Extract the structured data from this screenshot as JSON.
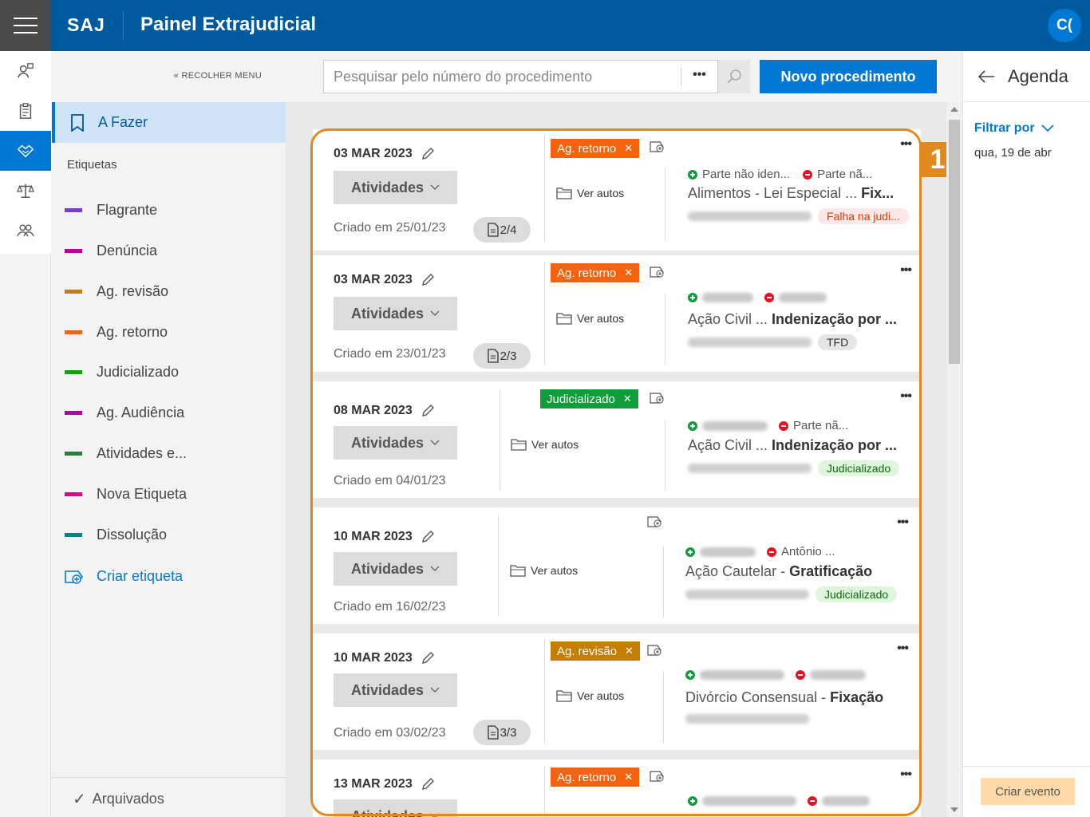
{
  "header": {
    "brand": "SAJ",
    "title": "Painel Extrajudicial",
    "avatar": "C("
  },
  "sidebar": {
    "collapse_label": "« RECOLHER MENU",
    "active_item": "A Fazer",
    "tags_title": "Etiquetas",
    "tags": [
      {
        "label": "Flagrante",
        "color": "#7a3bd6"
      },
      {
        "label": "Denúncia",
        "color": "#b4009e"
      },
      {
        "label": "Ag. revisão",
        "color": "#c47f00"
      },
      {
        "label": "Ag. retorno",
        "color": "#f7630c"
      },
      {
        "label": "Judicializado",
        "color": "#13a10e"
      },
      {
        "label": "Ag. Audiência",
        "color": "#b4009e"
      },
      {
        "label": "Atividades e...",
        "color": "#2d7d3a"
      },
      {
        "label": "Nova Etiqueta",
        "color": "#e3008c"
      },
      {
        "label": "Dissolução",
        "color": "#038387"
      }
    ],
    "create_tag": "Criar etiqueta",
    "archived": "Arquivados"
  },
  "search": {
    "placeholder": "Pesquisar pelo número do procedimento",
    "more": "•••"
  },
  "new_button": "Novo procedimento",
  "cards": [
    {
      "date": "03 MAR 2023",
      "activities": "Atividades",
      "created": "Criado em 25/01/23",
      "pages": "2/4",
      "chip": "Ag. retorno",
      "chip_type": "retorno",
      "ver_autos": "Ver autos",
      "party1": "Parte não iden...",
      "party2": "Parte nã...",
      "title_a": "Alimentos - Lei Especial ... ",
      "title_b": "Fix...",
      "pill": "Falha na judi...",
      "pill_type": "fail"
    },
    {
      "date": "03 MAR 2023",
      "activities": "Atividades",
      "created": "Criado em 23/01/23",
      "pages": "2/3",
      "chip": "Ag. retorno",
      "chip_type": "retorno",
      "ver_autos": "Ver autos",
      "party1": "",
      "party2": "",
      "title_a": "Ação Civil ... ",
      "title_b": "Indenização por ...",
      "pill": "TFD",
      "pill_type": "tfd"
    },
    {
      "date": "08 MAR 2023",
      "activities": "Atividades",
      "created": "Criado em 04/01/23",
      "pages": "",
      "chip": "Judicializado",
      "chip_type": "judic",
      "ver_autos": "Ver autos",
      "party1": "",
      "party2": "Parte nã...",
      "title_a": "Ação Civil ... ",
      "title_b": "Indenização por ...",
      "pill": "Judicializado",
      "pill_type": "jud"
    },
    {
      "date": "10 MAR 2023",
      "activities": "Atividades",
      "created": "Criado em 16/02/23",
      "pages": "",
      "chip": "",
      "chip_type": "",
      "ver_autos": "Ver autos",
      "party1": "",
      "party2": "Antônio ...",
      "title_a": "Ação Cautelar - ",
      "title_b": "Gratificação",
      "pill": "Judicializado",
      "pill_type": "jud"
    },
    {
      "date": "10 MAR 2023",
      "activities": "Atividades",
      "created": "Criado em 03/02/23",
      "pages": "3/3",
      "chip": "Ag. revisão",
      "chip_type": "revisao",
      "ver_autos": "Ver autos",
      "party1": "",
      "party2": "",
      "title_a": "Divórcio Consensual - ",
      "title_b": "Fixação",
      "pill": "",
      "pill_type": ""
    },
    {
      "date": "13 MAR 2023",
      "activities": "Atividades",
      "created": "",
      "pages": "",
      "chip": "Ag. retorno",
      "chip_type": "retorno",
      "ver_autos": "",
      "party1": "",
      "party2": "",
      "title_a": "",
      "title_b": "",
      "pill": "",
      "pill_type": ""
    }
  ],
  "annotation_badge": "1",
  "agenda": {
    "title": "Agenda",
    "filter": "Filtrar por",
    "date": "qua, 19 de abr",
    "create_event": "Criar evento"
  }
}
